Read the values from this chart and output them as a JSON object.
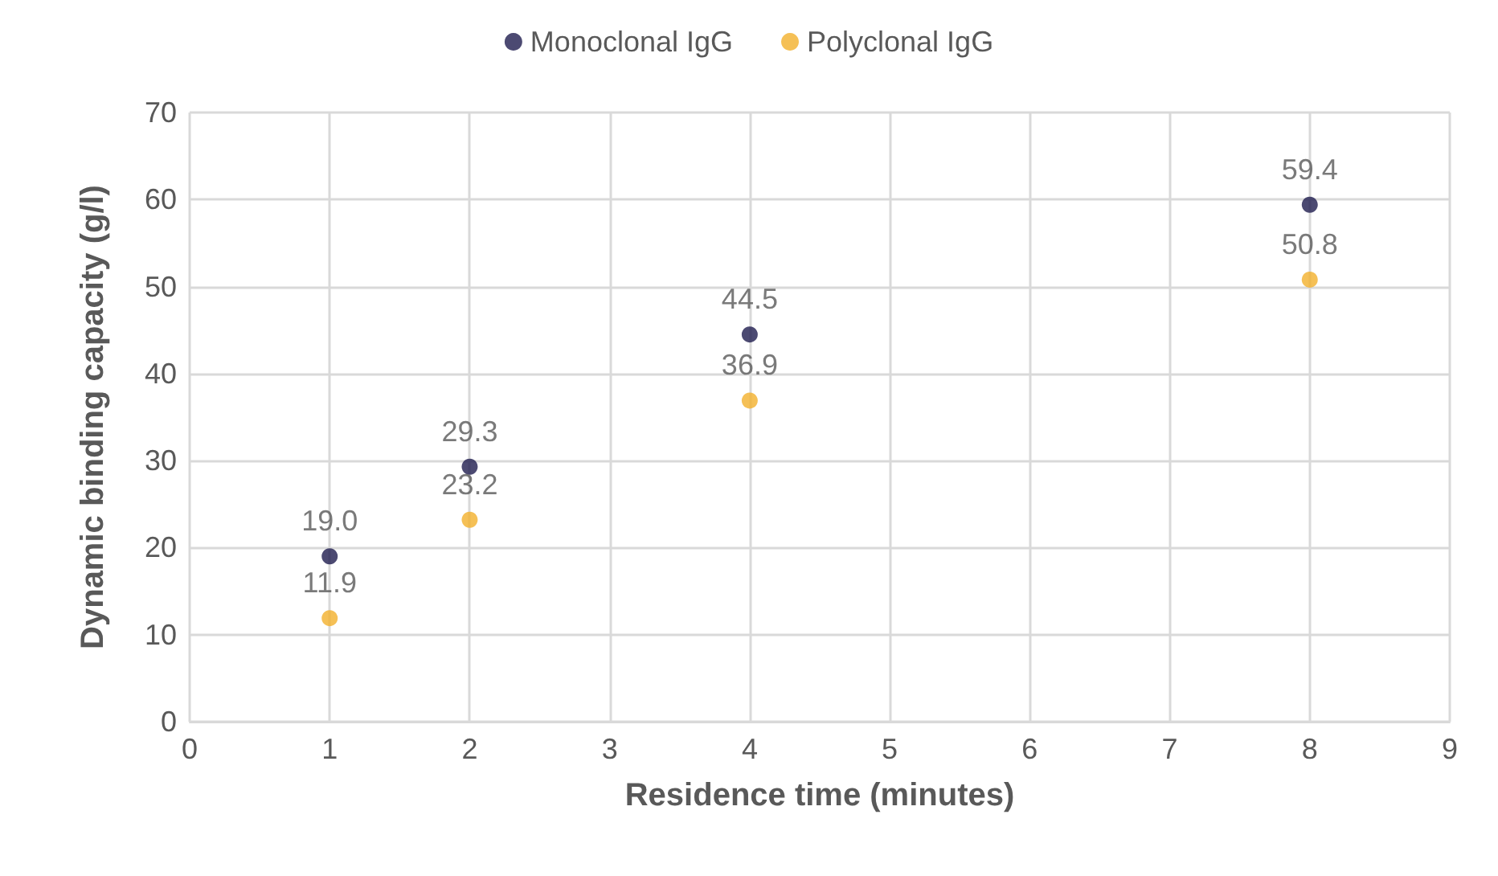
{
  "chart_data": {
    "type": "scatter",
    "xlabel": "Residence time (minutes)",
    "ylabel": "Dynamic binding capacity (g/l)",
    "x": [
      1,
      2,
      4,
      8
    ],
    "series": [
      {
        "name": "Monoclonal IgG",
        "color": "#1f1d4f",
        "values": [
          19.0,
          29.3,
          44.5,
          59.4
        ],
        "value_labels": [
          "19.0",
          "29.3",
          "44.5",
          "59.4"
        ]
      },
      {
        "name": "Polyclonal IgG",
        "color": "#f2b02c",
        "values": [
          11.9,
          23.2,
          36.9,
          50.8
        ],
        "value_labels": [
          "11.9",
          "23.2",
          "36.9",
          "50.8"
        ]
      }
    ],
    "xlim": [
      0,
      9
    ],
    "xticks": [
      0,
      1,
      2,
      3,
      4,
      5,
      6,
      7,
      8,
      9
    ],
    "ylim": [
      0,
      70
    ],
    "yticks": [
      0,
      10,
      20,
      30,
      40,
      50,
      60,
      70
    ],
    "grid": true,
    "legend": "top",
    "marker": "circle"
  }
}
